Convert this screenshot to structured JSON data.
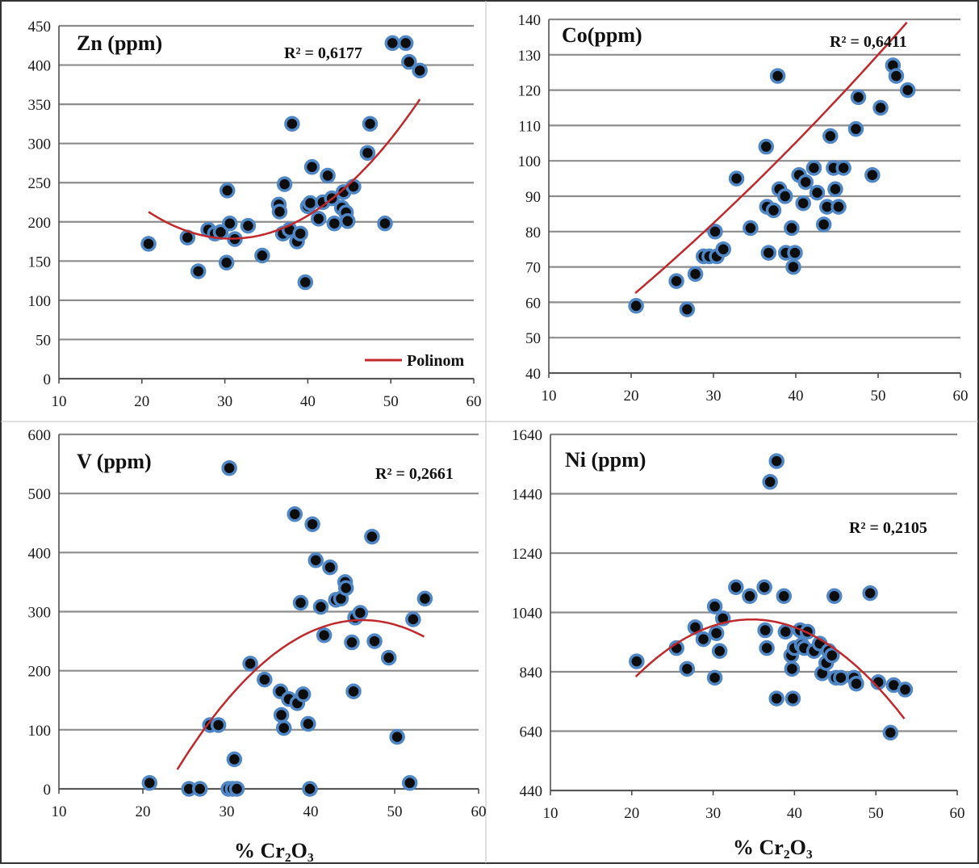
{
  "chart_data": [
    {
      "type": "scatter",
      "title": "Zn (ppm)",
      "annotation": "R² = 0,6177",
      "legend": "Polinom",
      "xlabel": "",
      "xlim": [
        10,
        60
      ],
      "xticks": [
        10,
        20,
        30,
        40,
        50,
        60
      ],
      "ylim": [
        0,
        450
      ],
      "yticks": [
        0,
        50,
        100,
        150,
        200,
        250,
        300,
        350,
        400,
        450
      ],
      "trend": {
        "type": "polynomial",
        "degree": 2,
        "x_range": [
          20.8,
          53.5
        ],
        "coeffs": [
          503.8,
          -21.14,
          0.3436
        ]
      },
      "points": [
        [
          20.8,
          172
        ],
        [
          25.5,
          180
        ],
        [
          26.8,
          137
        ],
        [
          28,
          190
        ],
        [
          28.8,
          185
        ],
        [
          29.5,
          187
        ],
        [
          30.2,
          148
        ],
        [
          30.3,
          240
        ],
        [
          30.6,
          198
        ],
        [
          31.2,
          178
        ],
        [
          32.8,
          195
        ],
        [
          34.5,
          157
        ],
        [
          36.5,
          222
        ],
        [
          36.6,
          213
        ],
        [
          37,
          185
        ],
        [
          37.2,
          248
        ],
        [
          37.8,
          190
        ],
        [
          38.1,
          325
        ],
        [
          38.7,
          175
        ],
        [
          39.1,
          185
        ],
        [
          39.7,
          123
        ],
        [
          40,
          220
        ],
        [
          40.3,
          224
        ],
        [
          40.5,
          270
        ],
        [
          41.3,
          204
        ],
        [
          41.8,
          225
        ],
        [
          42.4,
          259
        ],
        [
          42.9,
          230
        ],
        [
          43.2,
          198
        ],
        [
          44.1,
          218
        ],
        [
          44.3,
          238
        ],
        [
          44.6,
          212
        ],
        [
          44.8,
          201
        ],
        [
          45.5,
          245
        ],
        [
          47.2,
          288
        ],
        [
          47.5,
          325
        ],
        [
          49.3,
          198
        ],
        [
          50.2,
          428
        ],
        [
          51.8,
          428
        ],
        [
          52.2,
          404
        ],
        [
          53.5,
          393
        ]
      ]
    },
    {
      "type": "scatter",
      "title": "Co(ppm)",
      "annotation": "R² = 0,6411",
      "xlabel": "",
      "xlim": [
        10,
        60
      ],
      "xticks": [
        10,
        20,
        30,
        40,
        50,
        60
      ],
      "ylim": [
        40,
        140
      ],
      "yticks": [
        40,
        50,
        60,
        70,
        80,
        90,
        100,
        110,
        120,
        130,
        140
      ],
      "trend": {
        "type": "polynomial",
        "degree": 2,
        "x_range": [
          20.5,
          53.5
        ],
        "coeffs": [
          26.0,
          1.58,
          0.01
        ]
      },
      "points": [
        [
          20.6,
          59
        ],
        [
          25.5,
          66
        ],
        [
          26.8,
          58
        ],
        [
          27.8,
          68
        ],
        [
          28.8,
          73
        ],
        [
          29.5,
          73
        ],
        [
          30.2,
          80
        ],
        [
          30.4,
          73
        ],
        [
          31.2,
          75
        ],
        [
          32.8,
          95
        ],
        [
          34.5,
          81
        ],
        [
          36.4,
          104
        ],
        [
          36.5,
          87
        ],
        [
          36.7,
          74
        ],
        [
          37.3,
          86
        ],
        [
          37.8,
          124
        ],
        [
          38,
          92
        ],
        [
          38.7,
          90
        ],
        [
          38.8,
          74
        ],
        [
          39.5,
          81
        ],
        [
          39.7,
          70
        ],
        [
          39.9,
          74
        ],
        [
          40.4,
          96
        ],
        [
          40.9,
          88
        ],
        [
          41.2,
          94
        ],
        [
          42.2,
          98
        ],
        [
          42.6,
          91
        ],
        [
          43.4,
          82
        ],
        [
          43.8,
          87
        ],
        [
          44.2,
          107
        ],
        [
          44.6,
          98
        ],
        [
          44.8,
          92
        ],
        [
          45.2,
          87
        ],
        [
          45.8,
          98
        ],
        [
          47.3,
          109
        ],
        [
          47.6,
          118
        ],
        [
          49.3,
          96
        ],
        [
          50.3,
          115
        ],
        [
          51.8,
          127
        ],
        [
          52.2,
          124
        ],
        [
          53.6,
          120
        ]
      ]
    },
    {
      "type": "scatter",
      "title": "V (ppm)",
      "annotation": "R² = 0,2661",
      "xlabel": "% Cr₂O₃",
      "xlim": [
        10,
        60
      ],
      "xticks": [
        10,
        20,
        30,
        40,
        50,
        60
      ],
      "ylim": [
        0,
        600
      ],
      "yticks": [
        0,
        100,
        200,
        300,
        400,
        500,
        600
      ],
      "trend": {
        "type": "polynomial",
        "degree": 2,
        "x_range": [
          24.1,
          53.5
        ],
        "coeffs": [
          -822.0,
          48.0,
          -0.52
        ]
      },
      "points": [
        [
          20.8,
          10
        ],
        [
          25.5,
          0
        ],
        [
          26.8,
          0
        ],
        [
          28,
          108
        ],
        [
          29,
          108
        ],
        [
          30.2,
          0
        ],
        [
          30.3,
          543
        ],
        [
          30.7,
          0
        ],
        [
          30.9,
          50
        ],
        [
          31.2,
          0
        ],
        [
          32.8,
          212
        ],
        [
          34.5,
          185
        ],
        [
          36.4,
          165
        ],
        [
          36.5,
          125
        ],
        [
          36.8,
          103
        ],
        [
          37.4,
          152
        ],
        [
          38.1,
          465
        ],
        [
          38.4,
          145
        ],
        [
          38.8,
          315
        ],
        [
          39.1,
          160
        ],
        [
          39.7,
          110
        ],
        [
          39.9,
          0
        ],
        [
          40.2,
          448
        ],
        [
          40.6,
          387
        ],
        [
          41.2,
          308
        ],
        [
          41.6,
          260
        ],
        [
          42.3,
          375
        ],
        [
          43,
          320
        ],
        [
          43.6,
          322
        ],
        [
          44.1,
          350
        ],
        [
          44.2,
          340
        ],
        [
          44.9,
          248
        ],
        [
          45.1,
          165
        ],
        [
          45.3,
          290
        ],
        [
          45.9,
          298
        ],
        [
          47.3,
          427
        ],
        [
          47.6,
          250
        ],
        [
          49.3,
          222
        ],
        [
          50.3,
          88
        ],
        [
          51.8,
          10
        ],
        [
          52.2,
          287
        ],
        [
          53.6,
          322
        ]
      ]
    },
    {
      "type": "scatter",
      "title": "Ni (ppm)",
      "annotation": "R² = 0,2105",
      "xlabel": "% Cr₂O₃",
      "xlim": [
        10,
        60
      ],
      "xticks": [
        10,
        20,
        30,
        40,
        50,
        60
      ],
      "ylim": [
        440,
        1640
      ],
      "yticks": [
        440,
        640,
        840,
        1040,
        1240,
        1440,
        1640
      ],
      "trend": {
        "type": "polynomial",
        "degree": 2,
        "x_range": [
          20.5,
          53.5
        ],
        "coeffs": [
          -130.0,
          66.0,
          -0.95
        ]
      },
      "points": [
        [
          20.6,
          875
        ],
        [
          25.5,
          920
        ],
        [
          26.8,
          850
        ],
        [
          27.8,
          990
        ],
        [
          28.8,
          950
        ],
        [
          30.2,
          1060
        ],
        [
          30.2,
          820
        ],
        [
          30.4,
          970
        ],
        [
          30.8,
          910
        ],
        [
          31.2,
          1020
        ],
        [
          32.8,
          1125
        ],
        [
          34.5,
          1095
        ],
        [
          36.3,
          1125
        ],
        [
          36.4,
          980
        ],
        [
          36.6,
          920
        ],
        [
          37,
          1480
        ],
        [
          37.8,
          1550
        ],
        [
          37.8,
          750
        ],
        [
          38.7,
          1095
        ],
        [
          38.9,
          975
        ],
        [
          39.6,
          895
        ],
        [
          39.7,
          850
        ],
        [
          39.8,
          750
        ],
        [
          40,
          920
        ],
        [
          40.7,
          980
        ],
        [
          40.9,
          930
        ],
        [
          41.2,
          920
        ],
        [
          41.6,
          975
        ],
        [
          42.4,
          910
        ],
        [
          43.1,
          935
        ],
        [
          43.4,
          835
        ],
        [
          43.9,
          870
        ],
        [
          44.2,
          910
        ],
        [
          44.6,
          895
        ],
        [
          44.9,
          1095
        ],
        [
          45.1,
          820
        ],
        [
          45.7,
          820
        ],
        [
          47.3,
          820
        ],
        [
          47.6,
          800
        ],
        [
          49.3,
          1105
        ],
        [
          50.3,
          805
        ],
        [
          51.8,
          635
        ],
        [
          52.2,
          795
        ],
        [
          53.6,
          780
        ]
      ]
    }
  ]
}
